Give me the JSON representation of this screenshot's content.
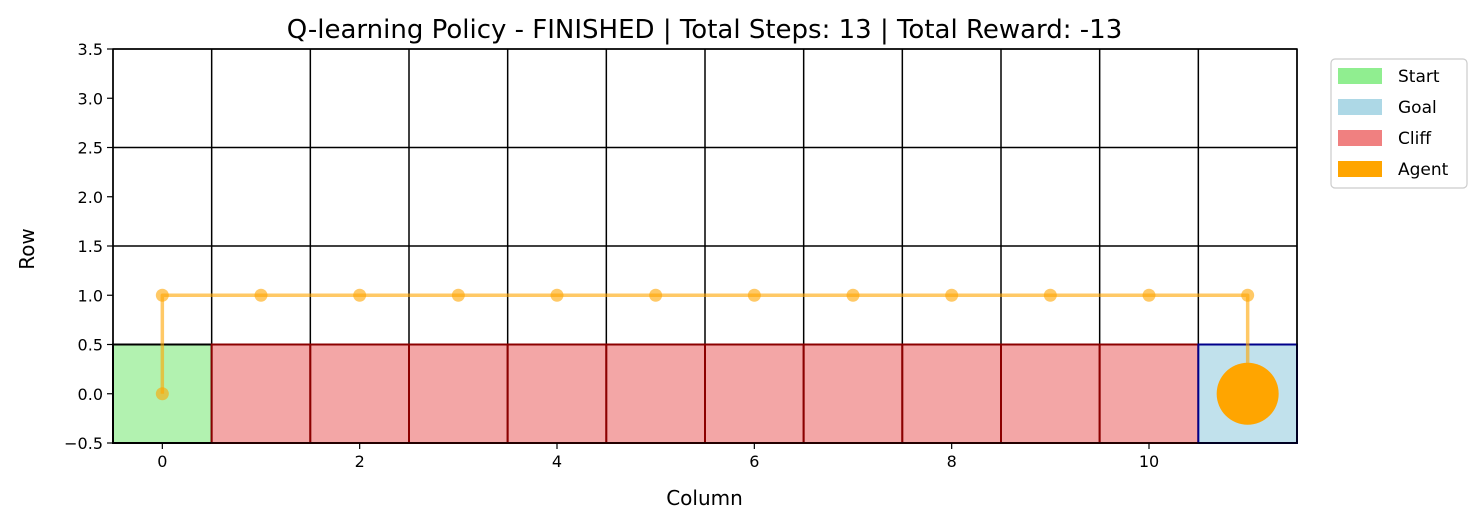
{
  "chart_data": {
    "type": "grid-path",
    "title": "Q-learning Policy - FINISHED | Total Steps: 13 | Total Reward: -13",
    "xlabel": "Column",
    "ylabel": "Row",
    "xlim": [
      -0.5,
      11.5
    ],
    "ylim": [
      -0.5,
      3.5
    ],
    "xticks": [
      0,
      2,
      4,
      6,
      8,
      10
    ],
    "xtick_labels": [
      "0",
      "2",
      "4",
      "6",
      "8",
      "10"
    ],
    "yticks": [
      -0.5,
      0.0,
      0.5,
      1.0,
      1.5,
      2.0,
      2.5,
      3.0,
      3.5
    ],
    "ytick_labels": [
      "−0.5",
      "0.0",
      "0.5",
      "1.0",
      "1.5",
      "2.0",
      "2.5",
      "3.0",
      "3.5"
    ],
    "grid_cols": 12,
    "grid_rows": 4,
    "grid": true,
    "cells": {
      "start": {
        "col": 0,
        "row": 0
      },
      "goal": {
        "col": 11,
        "row": 0
      },
      "cliff": {
        "cols": [
          1,
          2,
          3,
          4,
          5,
          6,
          7,
          8,
          9,
          10
        ],
        "row": 0
      }
    },
    "path": [
      {
        "x": 0,
        "y": 0
      },
      {
        "x": 0,
        "y": 1
      },
      {
        "x": 1,
        "y": 1
      },
      {
        "x": 2,
        "y": 1
      },
      {
        "x": 3,
        "y": 1
      },
      {
        "x": 4,
        "y": 1
      },
      {
        "x": 5,
        "y": 1
      },
      {
        "x": 6,
        "y": 1
      },
      {
        "x": 7,
        "y": 1
      },
      {
        "x": 8,
        "y": 1
      },
      {
        "x": 9,
        "y": 1
      },
      {
        "x": 10,
        "y": 1
      },
      {
        "x": 11,
        "y": 1
      },
      {
        "x": 11,
        "y": 0
      }
    ],
    "agent": {
      "x": 11,
      "y": 0
    },
    "legend": {
      "placement": "outside-top-right",
      "entries": [
        {
          "label": "Start",
          "color": "#90ee90"
        },
        {
          "label": "Goal",
          "color": "#add8e6"
        },
        {
          "label": "Cliff",
          "color": "#f08080"
        },
        {
          "label": "Agent",
          "color": "#ffa500"
        }
      ]
    },
    "colors": {
      "start_fill": "#b2f2b0",
      "goal_fill": "#c1e1ec",
      "cliff_fill": "#f3a6a6",
      "path": "#ffa500",
      "agent": "#ffa500",
      "goal_edge": "#00008b",
      "cliff_edge": "#8b0000"
    }
  }
}
